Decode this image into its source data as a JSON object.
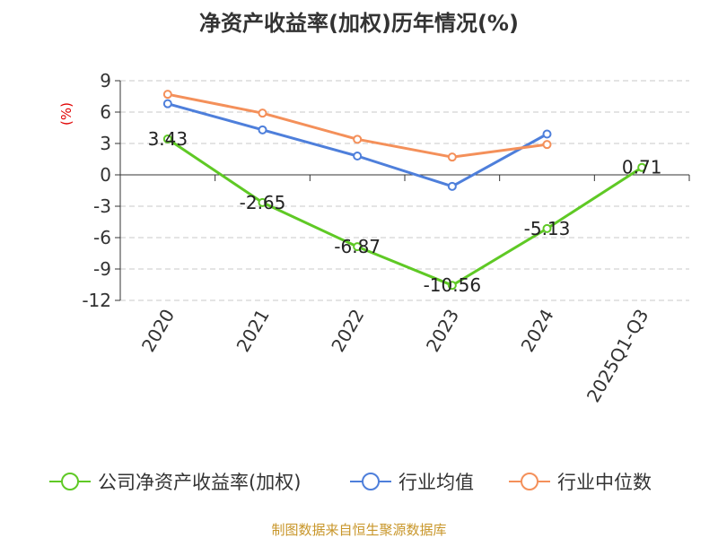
{
  "chart_data": {
    "type": "line",
    "title": "净资产收益率(加权)历年情况(%)",
    "ylabel": "(%)",
    "xlabel": "",
    "categories": [
      "2020",
      "2021",
      "2022",
      "2023",
      "2024",
      "2025Q1-Q3"
    ],
    "ylim": [
      -12,
      9
    ],
    "yticks": [
      9,
      6,
      3,
      0,
      -3,
      -6,
      -9,
      -12
    ],
    "yticklabels": [
      "9",
      "6",
      "3",
      "0",
      "-3",
      "-6",
      "-9",
      "-12"
    ],
    "grid": true,
    "legend": "bottom",
    "series": [
      {
        "name": "公司净资产收益率(加权)",
        "color": "#5fc925",
        "values": [
          3.43,
          -2.65,
          -6.87,
          -10.56,
          -5.13,
          0.71
        ],
        "labels": [
          "3.43",
          "-2.65",
          "-6.87",
          "-10.56",
          "-5.13",
          "0.71"
        ]
      },
      {
        "name": "行业均值",
        "color": "#4e7fdb",
        "values": [
          6.8,
          4.3,
          1.8,
          -1.1,
          3.9,
          null
        ]
      },
      {
        "name": "行业中位数",
        "color": "#f4905a",
        "values": [
          7.7,
          5.9,
          3.4,
          1.7,
          2.9,
          null
        ]
      }
    ]
  },
  "source_text": "制图数据来自恒生聚源数据库"
}
